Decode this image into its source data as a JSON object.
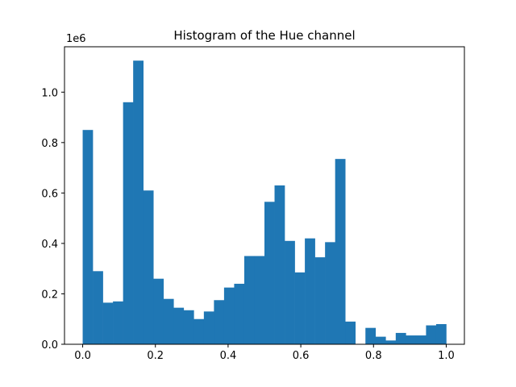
{
  "chart_data": {
    "type": "bar",
    "title": "Histogram of the Hue channel",
    "xlabel": "",
    "ylabel": "",
    "y_multiplier_label": "1e6",
    "xlim": [
      -0.05,
      1.05
    ],
    "ylim": [
      0,
      1.18
    ],
    "bar_color": "#1f77b4",
    "grid": false,
    "legend": "none",
    "x_ticks": [
      0.0,
      0.2,
      0.4,
      0.6,
      0.8,
      1.0
    ],
    "x_tick_labels": [
      "0.0",
      "0.2",
      "0.4",
      "0.6",
      "0.8",
      "1.0"
    ],
    "y_ticks": [
      0.0,
      0.2,
      0.4,
      0.6,
      0.8,
      1.0
    ],
    "y_tick_labels": [
      "0.0",
      "0.2",
      "0.4",
      "0.6",
      "0.8",
      "1.0"
    ],
    "bins": {
      "start": 0.0,
      "end": 1.0,
      "count": 50
    },
    "values": [
      0.85,
      0.29,
      0.165,
      0.17,
      0.96,
      1.125,
      0.61,
      0.26,
      0.18,
      0.145,
      0.135,
      0.1,
      0.13,
      0.175,
      0.225,
      0.24,
      0.35,
      0.35,
      0.565,
      0.63,
      0.41,
      0.285,
      0.42,
      0.345,
      0.405,
      0.735,
      0.09,
      0.0,
      0.065,
      0.03,
      0.015,
      0.045,
      0.035,
      0.035,
      0.075,
      0.08,
      0.0,
      0.0,
      0.0,
      0.0,
      0.0,
      0.0,
      0.0,
      0.0,
      0.0,
      0.0,
      0.0,
      0.0,
      0.0,
      0.0
    ],
    "bin_count_visible": 36
  }
}
